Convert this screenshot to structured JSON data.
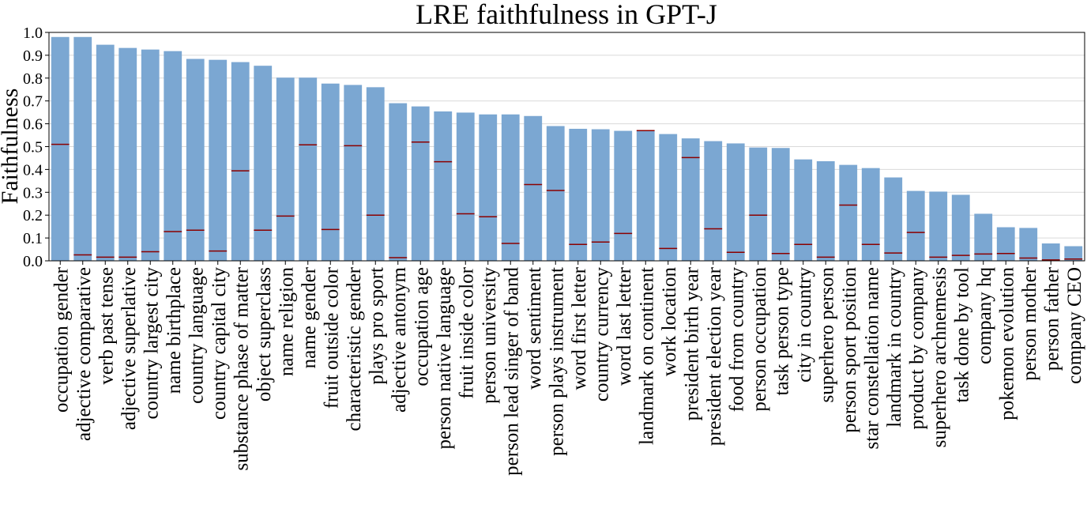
{
  "chart_data": {
    "type": "bar",
    "title": "LRE faithfulness in GPT-J",
    "xlabel": "",
    "ylabel": "Faithfulness",
    "ylim": [
      0,
      1.0
    ],
    "yticks": [
      "0.0",
      "0.1",
      "0.2",
      "0.3",
      "0.4",
      "0.5",
      "0.6",
      "0.7",
      "0.8",
      "0.9",
      "1.0"
    ],
    "grid": "horizontal",
    "bar_color": "#7ba7d2",
    "marker_color": "#8b0000",
    "categories": [
      "occupation gender",
      "adjective comparative",
      "verb past tense",
      "adjective superlative",
      "country largest city",
      "name birthplace",
      "country language",
      "country capital city",
      "substance phase of matter",
      "object superclass",
      "name religion",
      "name gender",
      "fruit outside color",
      "characteristic gender",
      "plays pro sport",
      "adjective antonym",
      "occupation age",
      "person native language",
      "fruit inside color",
      "person university",
      "person lead singer of band",
      "word sentiment",
      "person plays instrument",
      "word first letter",
      "country currency",
      "word last letter",
      "landmark on continent",
      "work location",
      "president birth year",
      "president election year",
      "food from country",
      "person occupation",
      "task person type",
      "city in country",
      "superhero person",
      "person sport position",
      "star constellation name",
      "landmark in country",
      "product by company",
      "superhero archnemesis",
      "task done by tool",
      "company hq",
      "pokemon evolution",
      "person mother",
      "person father",
      "company CEO"
    ],
    "values": [
      0.98,
      0.98,
      0.946,
      0.932,
      0.925,
      0.918,
      0.884,
      0.88,
      0.87,
      0.854,
      0.802,
      0.802,
      0.776,
      0.77,
      0.76,
      0.69,
      0.676,
      0.654,
      0.649,
      0.641,
      0.641,
      0.634,
      0.59,
      0.578,
      0.576,
      0.569,
      0.569,
      0.555,
      0.536,
      0.524,
      0.514,
      0.496,
      0.494,
      0.444,
      0.436,
      0.42,
      0.406,
      0.365,
      0.306,
      0.303,
      0.289,
      0.206,
      0.147,
      0.144,
      0.076,
      0.064
    ],
    "baseline_markers": [
      0.51,
      0.026,
      0.016,
      0.016,
      0.04,
      0.128,
      0.134,
      0.043,
      0.394,
      0.134,
      0.196,
      0.508,
      0.137,
      0.504,
      0.2,
      0.014,
      0.52,
      0.434,
      0.206,
      0.193,
      0.076,
      0.334,
      0.308,
      0.072,
      0.082,
      0.12,
      0.57,
      0.054,
      0.452,
      0.14,
      0.037,
      0.2,
      0.032,
      0.072,
      0.016,
      0.244,
      0.072,
      0.034,
      0.124,
      0.016,
      0.024,
      0.03,
      0.032,
      0.012,
      0.004,
      0.008
    ]
  }
}
